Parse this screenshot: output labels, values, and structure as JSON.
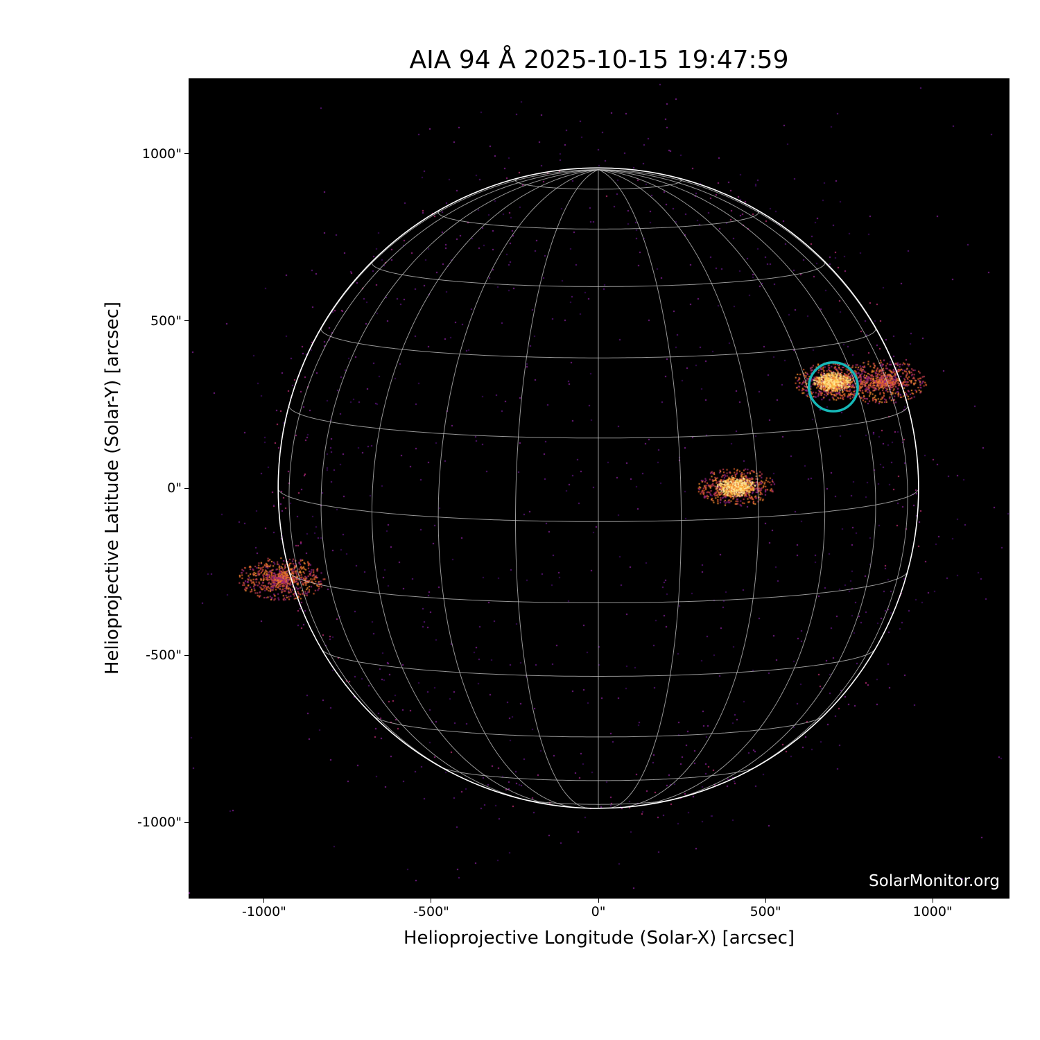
{
  "chart_data": {
    "type": "image",
    "title": "AIA 94 Å 2025-10-15 19:47:59",
    "xlabel": "Helioprojective Longitude (Solar-X) [arcsec]",
    "ylabel": "Helioprojective Latitude (Solar-Y) [arcsec]",
    "xlim": [
      -1226,
      1230
    ],
    "ylim": [
      -1228,
      1226
    ],
    "xticks": [
      {
        "value": -1000,
        "label": "-1000\""
      },
      {
        "value": -500,
        "label": "-500\""
      },
      {
        "value": 0,
        "label": "0\""
      },
      {
        "value": 500,
        "label": "500\""
      },
      {
        "value": 1000,
        "label": "1000\""
      }
    ],
    "yticks": [
      {
        "value": 1000,
        "label": "1000\""
      },
      {
        "value": 500,
        "label": "500\""
      },
      {
        "value": 0,
        "label": "0\""
      },
      {
        "value": -500,
        "label": "-500\""
      },
      {
        "value": -1000,
        "label": "-1000\""
      }
    ],
    "solar_radius_arcsec": 958,
    "b0_deg": 6,
    "grid_spacing_deg": 15,
    "colormap": "sdoaia94",
    "colors": {
      "background": "#000000",
      "limb": "#ffffff",
      "grid": "#c8c8c8",
      "marker": "#16b8b8",
      "low": "#6a1a8a",
      "mid": "#e0602a",
      "high": "#ffe080"
    },
    "highlight_circle": {
      "x": 703,
      "y": 303,
      "radius": 73
    },
    "bright_regions": [
      {
        "x": 700,
        "y": 320,
        "intensity": "high"
      },
      {
        "x": 850,
        "y": 320,
        "intensity": "mid"
      },
      {
        "x": 410,
        "y": 5,
        "intensity": "high"
      },
      {
        "x": -950,
        "y": -270,
        "intensity": "mid"
      }
    ],
    "watermark": "SolarMonitor.org"
  }
}
